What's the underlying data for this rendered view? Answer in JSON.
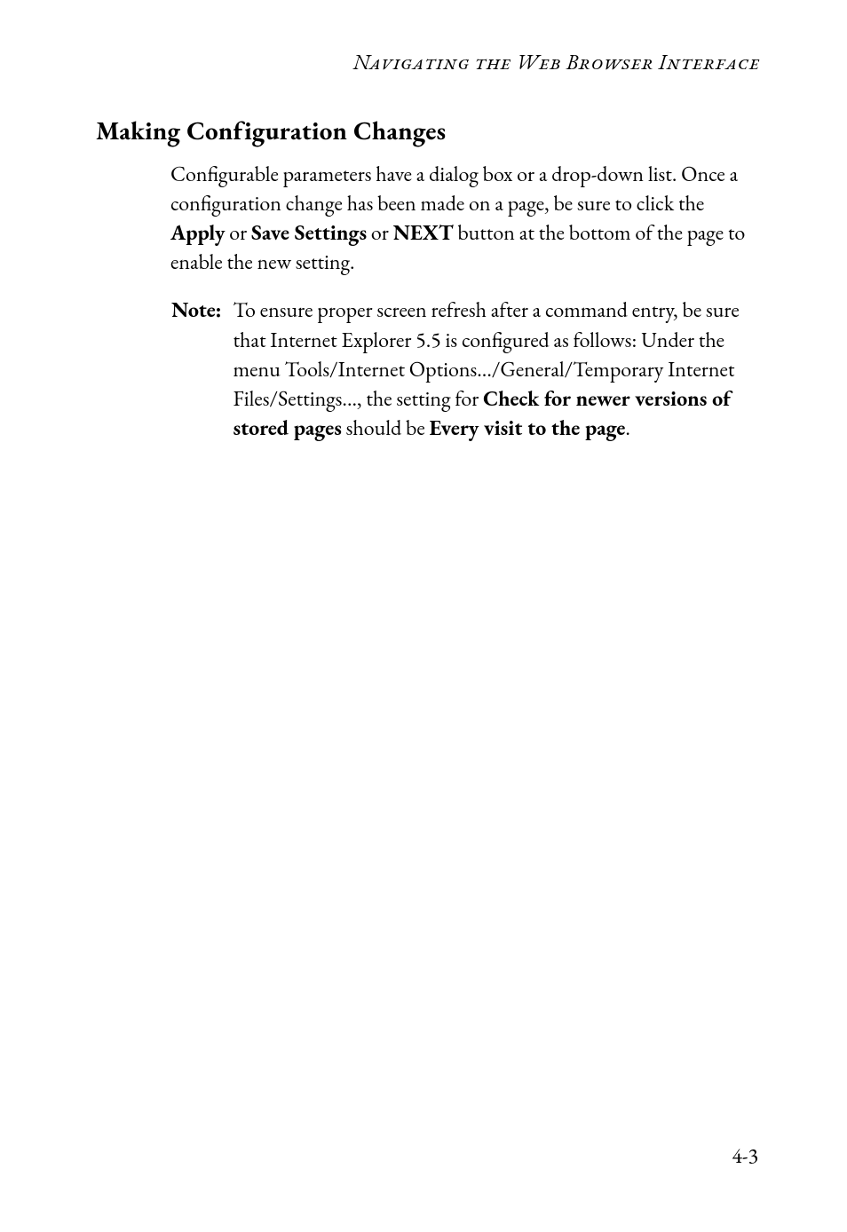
{
  "running_head": "Navigating the Web Browser Interface",
  "section_title": "Making Configuration Changes",
  "para1_a": "Configurable parameters have a dialog box or a drop-down list. Once a configuration change has been made on a page, be sure to click the ",
  "para1_b1": "Apply",
  "para1_c": " or ",
  "para1_b2": "Save Settings",
  "para1_d": " or ",
  "para1_b3": "NEXT",
  "para1_e": " button at the bottom of the page to enable the new setting.",
  "note_label": "Note:",
  "note_a": "To ensure proper screen refresh after a command entry, be sure that Internet Explorer 5.5 is configured as follows: Under the menu Tools/Internet Options.../General/Temporary Internet Files/Settings..., the setting for ",
  "note_b1": "Check for newer versions of stored pages",
  "note_c": " should be ",
  "note_b2": "Every visit to the page",
  "note_d": ".",
  "page_number": "4-3"
}
